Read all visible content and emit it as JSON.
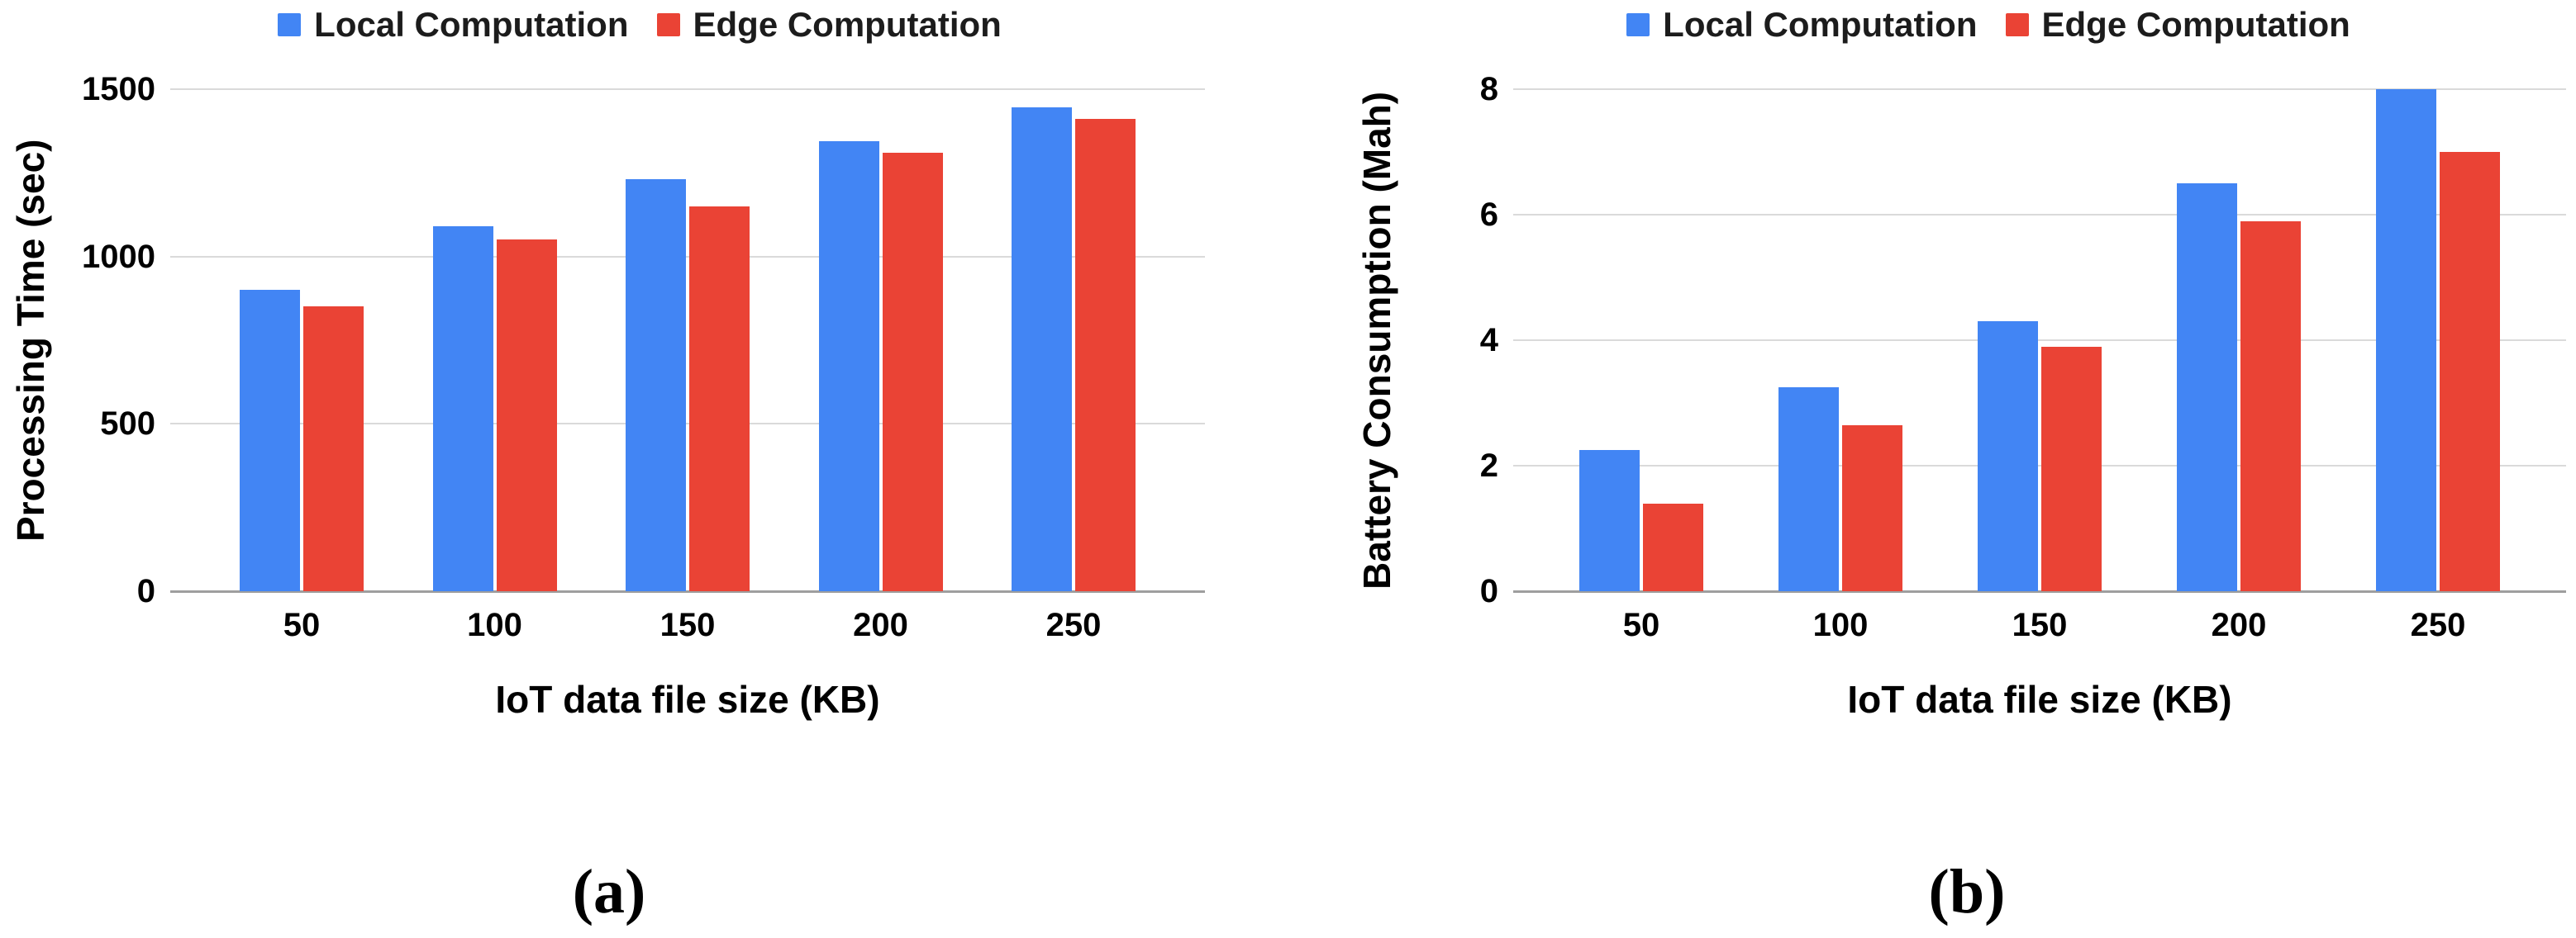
{
  "colors": {
    "local": "#4285F4",
    "edge": "#EA4335",
    "gridline": "#dadada",
    "baseline": "#9e9e9e",
    "text": "#000000"
  },
  "chart_data": [
    {
      "type": "bar",
      "caption": "(a)",
      "xlabel": "IoT data file size (KB)",
      "ylabel": "Processing Time (sec)",
      "categories": [
        "50",
        "100",
        "150",
        "200",
        "250"
      ],
      "series": [
        {
          "name": "Local Computation",
          "color": "#4285F4",
          "values": [
            900,
            1090,
            1230,
            1345,
            1445
          ]
        },
        {
          "name": "Edge Computation",
          "color": "#EA4335",
          "values": [
            850,
            1050,
            1150,
            1310,
            1410
          ]
        }
      ],
      "ylim": [
        0,
        1500
      ],
      "yticks": [
        0,
        500,
        1000,
        1500
      ],
      "grid": true,
      "legend_position": "top"
    },
    {
      "type": "bar",
      "caption": "(b)",
      "xlabel": "IoT data file size (KB)",
      "ylabel": "Battery Consumption (Mah)",
      "categories": [
        "50",
        "100",
        "150",
        "200",
        "250"
      ],
      "series": [
        {
          "name": "Local Computation",
          "color": "#4285F4",
          "values": [
            2.25,
            3.25,
            4.3,
            6.5,
            8
          ]
        },
        {
          "name": "Edge Computation",
          "color": "#EA4335",
          "values": [
            1.4,
            2.65,
            3.9,
            5.9,
            7
          ]
        }
      ],
      "ylim": [
        0,
        8
      ],
      "yticks": [
        0,
        2,
        4,
        6,
        8
      ],
      "grid": true,
      "legend_position": "top"
    }
  ]
}
